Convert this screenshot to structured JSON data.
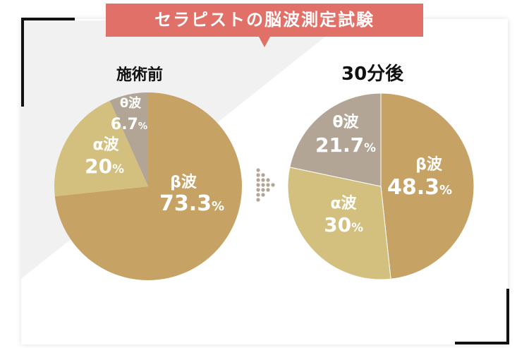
{
  "title": "セラピストの脳波測定試験",
  "colors": {
    "beta": "#c6a265",
    "alpha": "#d3c07f",
    "theta": "#b2a595",
    "banner": "#e07068",
    "background_gray": "#f1f1f1",
    "arrow": "#b2a595"
  },
  "chart_data": [
    {
      "type": "pie",
      "title": "施術前",
      "series": [
        {
          "name": "β波",
          "value": 73.3,
          "label": "73.3",
          "unit": "%"
        },
        {
          "name": "α波",
          "value": 20,
          "label": "20",
          "unit": "%"
        },
        {
          "name": "θ波",
          "value": 6.7,
          "label": "6.7",
          "unit": "%"
        }
      ]
    },
    {
      "type": "pie",
      "title": "30分後",
      "series": [
        {
          "name": "β波",
          "value": 48.3,
          "label": "48.3",
          "unit": "%"
        },
        {
          "name": "α波",
          "value": 30,
          "label": "30",
          "unit": "%"
        },
        {
          "name": "θ波",
          "value": 21.7,
          "label": "21.7",
          "unit": "%"
        }
      ]
    }
  ],
  "arrow_icon": "dotted-right-arrow"
}
